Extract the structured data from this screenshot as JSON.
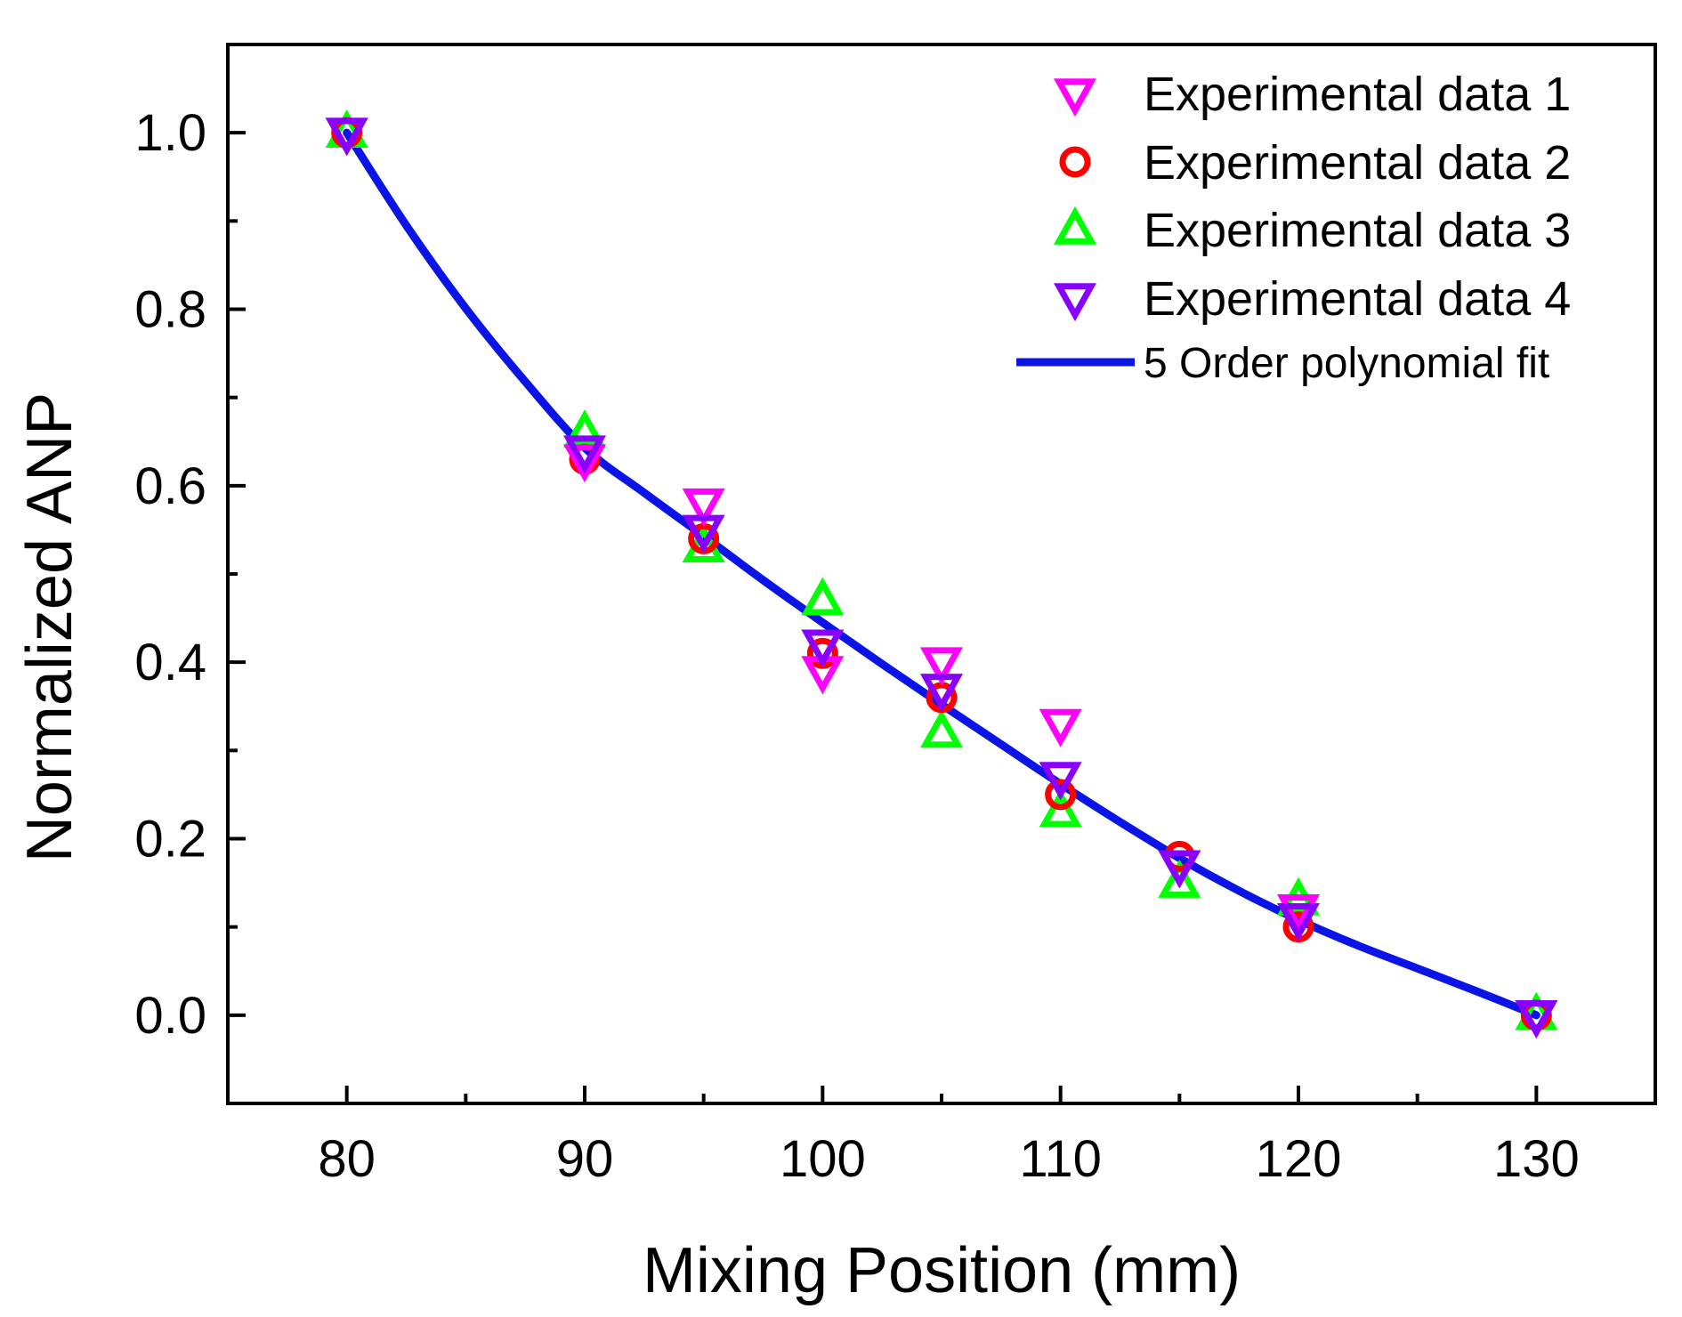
{
  "chart_data": {
    "type": "scatter",
    "xlabel": "Mixing Position (mm)",
    "ylabel": "Normalized ANP",
    "xlim": [
      75,
      135
    ],
    "ylim": [
      -0.1,
      1.1
    ],
    "xticks": [
      80,
      90,
      100,
      110,
      120,
      130
    ],
    "xtick_labels": [
      "80",
      "90",
      "100",
      "110",
      "120",
      "130"
    ],
    "xminor": [
      85,
      95,
      105,
      115,
      125
    ],
    "yticks": [
      0.0,
      0.2,
      0.4,
      0.6,
      0.8,
      1.0
    ],
    "ytick_labels": [
      "0.0",
      "0.2",
      "0.4",
      "0.6",
      "0.8",
      "1.0"
    ],
    "yminor": [
      -0.1,
      0.1,
      0.3,
      0.5,
      0.7,
      0.9
    ],
    "grid": false,
    "legend_position": "top-right",
    "series": [
      {
        "name": "Experimental data 1",
        "marker": "triangle-down",
        "color": "#ff00ff",
        "x": [
          80,
          90,
          95,
          100,
          105,
          110,
          115,
          120,
          130
        ],
        "y": [
          1.0,
          0.63,
          0.58,
          0.39,
          0.4,
          0.33,
          0.17,
          0.12,
          0.0
        ]
      },
      {
        "name": "Experimental data 2",
        "marker": "circle",
        "color": "#ff0000",
        "x": [
          80,
          90,
          95,
          100,
          105,
          110,
          115,
          120,
          130
        ],
        "y": [
          1.0,
          0.63,
          0.54,
          0.41,
          0.36,
          0.25,
          0.18,
          0.1,
          0.0
        ]
      },
      {
        "name": "Experimental data 3",
        "marker": "triangle-up",
        "color": "#00ff00",
        "x": [
          80,
          90,
          95,
          100,
          105,
          110,
          115,
          120,
          130
        ],
        "y": [
          1.0,
          0.66,
          0.53,
          0.47,
          0.32,
          0.23,
          0.15,
          0.13,
          0.0
        ]
      },
      {
        "name": "Experimental data 4",
        "marker": "triangle-down",
        "color": "#8800ff",
        "x": [
          80,
          90,
          95,
          100,
          105,
          110,
          115,
          120,
          130
        ],
        "y": [
          1.0,
          0.64,
          0.55,
          0.42,
          0.37,
          0.27,
          0.17,
          0.11,
          0.0
        ]
      }
    ],
    "fit": {
      "name": "5 Order polynomial fit",
      "color": "#0a14e6",
      "x": [
        80,
        82.5,
        85,
        87.5,
        90,
        92.5,
        95,
        97.5,
        100,
        102.5,
        105,
        107.5,
        110,
        112.5,
        115,
        117.5,
        120,
        122.5,
        125,
        127.5,
        130
      ],
      "y": [
        1.0,
        0.895,
        0.801,
        0.718,
        0.643,
        0.592,
        0.543,
        0.493,
        0.445,
        0.398,
        0.352,
        0.307,
        0.262,
        0.219,
        0.178,
        0.141,
        0.108,
        0.079,
        0.053,
        0.027,
        0.0
      ]
    }
  }
}
